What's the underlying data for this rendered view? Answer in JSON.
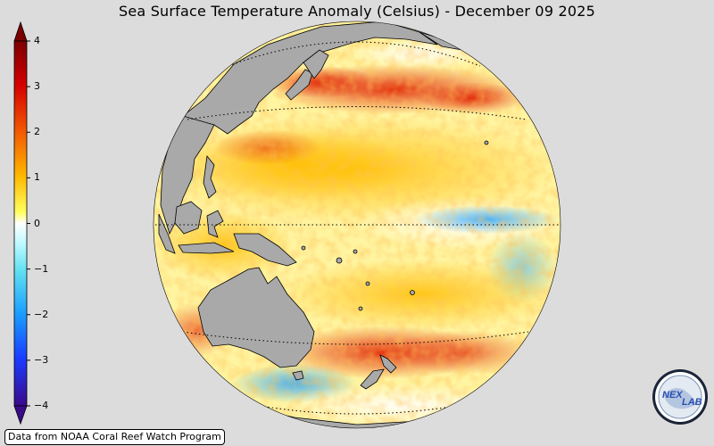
{
  "title": "Sea Surface Temperature Anomaly (Celsius) - December 09 2025",
  "colorbar": {
    "ticks": [
      "4",
      "3",
      "2",
      "1",
      "0",
      "−1",
      "−2",
      "−3",
      "−4"
    ],
    "min": -4,
    "max": 4,
    "colors": [
      "#3a0a8a",
      "#1a40ff",
      "#29a8ff",
      "#7fe8ff",
      "#ffffff",
      "#ffff30",
      "#ffb000",
      "#f05000",
      "#d00000",
      "#7a0000"
    ]
  },
  "credit": "Data from NOAA Coral Reef Watch Program",
  "logo": {
    "text_nex": "NEX",
    "text_lab": "LAB"
  },
  "map": {
    "land_color": "#a9a9a9",
    "background_color": "#dcdcdc",
    "gridlines": "dotted latitude lines"
  }
}
